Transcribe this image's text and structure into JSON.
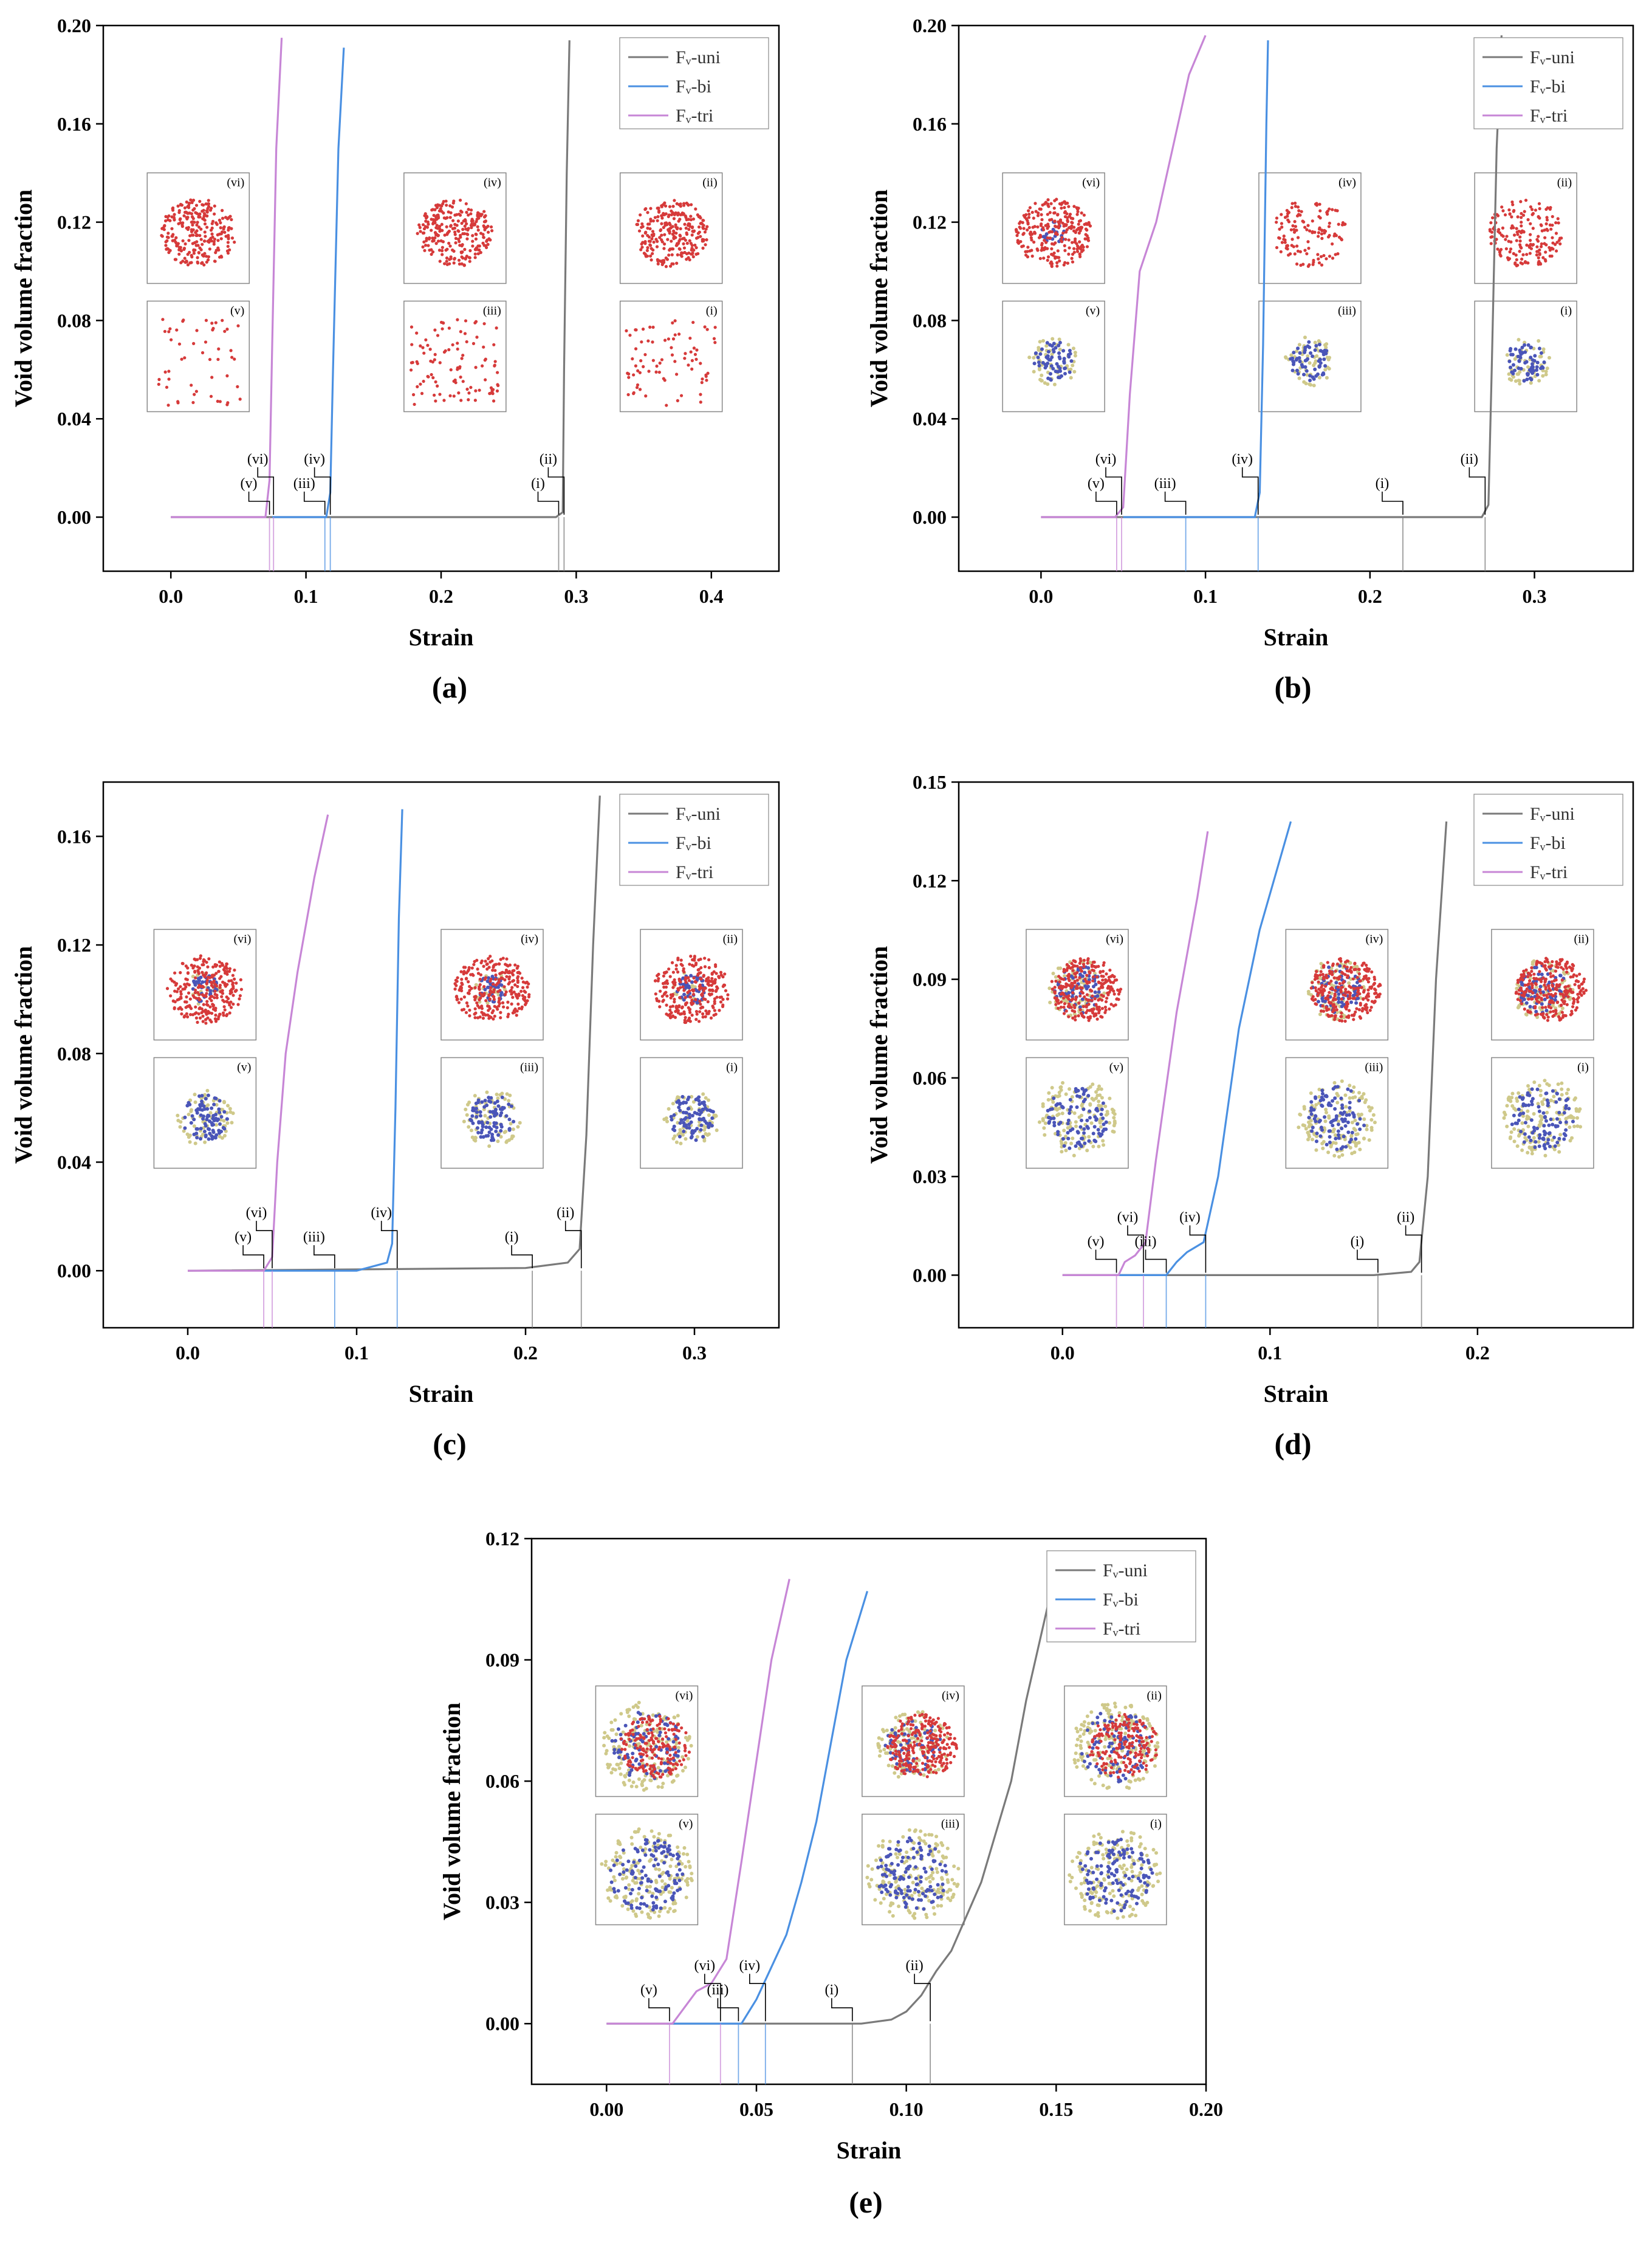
{
  "colors": {
    "uni": "#7a7a7a",
    "bi": "#4a90e2",
    "tri": "#c786d6",
    "void": "#d63a3a",
    "atom_blue": "#4a55b8",
    "atom_tan": "#cfc98a",
    "green": "#2db34a"
  },
  "legend_entries": [
    "Fᵥ-uni",
    "Fᵥ-bi",
    "Fᵥ-tri"
  ],
  "chart_data": [
    {
      "type": "line",
      "panel": "(a)",
      "xlabel": "Strain",
      "ylabel": "Void volume fraction",
      "xlim": [
        -0.05,
        0.45
      ],
      "ylim": [
        -0.022,
        0.2
      ],
      "xticks": [
        0.0,
        0.1,
        0.2,
        0.3,
        0.4
      ],
      "xtick_labels": [
        "0.0",
        "0.1",
        "0.2",
        "0.3",
        "0.4"
      ],
      "yticks": [
        0.0,
        0.04,
        0.08,
        0.12,
        0.16,
        0.2
      ],
      "ytick_labels": [
        "0.00",
        "0.04",
        "0.08",
        "0.12",
        "0.16",
        "0.20"
      ],
      "legend": "top-right",
      "series": [
        {
          "name": "Fᵥ-uni",
          "key": "uni",
          "x": [
            0,
            0.285,
            0.29,
            0.291,
            0.293,
            0.295
          ],
          "y": [
            0,
            0,
            0.002,
            0.06,
            0.14,
            0.194
          ]
        },
        {
          "name": "Fᵥ-bi",
          "key": "bi",
          "x": [
            0.075,
            0.115,
            0.118,
            0.12,
            0.124,
            0.128
          ],
          "y": [
            0,
            0,
            0.01,
            0.06,
            0.15,
            0.191
          ]
        },
        {
          "name": "Fᵥ-tri",
          "key": "tri",
          "x": [
            0,
            0.07,
            0.073,
            0.075,
            0.078,
            0.082
          ],
          "y": [
            0,
            0,
            0.015,
            0.07,
            0.15,
            0.195
          ]
        }
      ],
      "markers": [
        {
          "label": "(i)",
          "key": "uni",
          "x": 0.287
        },
        {
          "label": "(ii)",
          "key": "uni",
          "x": 0.291
        },
        {
          "label": "(iii)",
          "key": "bi",
          "x": 0.114
        },
        {
          "label": "(iv)",
          "key": "bi",
          "x": 0.118
        },
        {
          "label": "(v)",
          "key": "tri",
          "x": 0.073
        },
        {
          "label": "(vi)",
          "key": "tri",
          "x": 0.076
        }
      ],
      "insets": [
        "(vi)",
        "(iv)",
        "(ii)",
        "(v)",
        "(iii)",
        "(i)"
      ]
    },
    {
      "type": "line",
      "panel": "(b)",
      "xlabel": "Strain",
      "ylabel": "Void volume fraction",
      "xlim": [
        -0.05,
        0.36
      ],
      "ylim": [
        -0.022,
        0.2
      ],
      "xticks": [
        0.0,
        0.1,
        0.2,
        0.3
      ],
      "xtick_labels": [
        "0.0",
        "0.1",
        "0.2",
        "0.3"
      ],
      "yticks": [
        0.0,
        0.04,
        0.08,
        0.12,
        0.16,
        0.2
      ],
      "ytick_labels": [
        "0.00",
        "0.04",
        "0.08",
        "0.12",
        "0.16",
        "0.20"
      ],
      "legend": "top-right",
      "series": [
        {
          "name": "Fᵥ-uni",
          "key": "uni",
          "x": [
            0,
            0.268,
            0.272,
            0.274,
            0.277,
            0.28
          ],
          "y": [
            0,
            0,
            0.005,
            0.06,
            0.15,
            0.196
          ]
        },
        {
          "name": "Fᵥ-bi",
          "key": "bi",
          "x": [
            0.05,
            0.13,
            0.133,
            0.135,
            0.137,
            0.138
          ],
          "y": [
            0,
            0,
            0.01,
            0.07,
            0.16,
            0.194
          ]
        },
        {
          "name": "Fᵥ-tri",
          "key": "tri",
          "x": [
            0,
            0.045,
            0.05,
            0.054,
            0.06,
            0.07,
            0.08,
            0.09,
            0.1
          ],
          "y": [
            0,
            0,
            0.004,
            0.05,
            0.1,
            0.12,
            0.15,
            0.18,
            0.196
          ]
        }
      ],
      "markers": [
        {
          "label": "(i)",
          "key": "uni",
          "x": 0.22
        },
        {
          "label": "(ii)",
          "key": "uni",
          "x": 0.27
        },
        {
          "label": "(iii)",
          "key": "bi",
          "x": 0.088
        },
        {
          "label": "(iv)",
          "key": "bi",
          "x": 0.132
        },
        {
          "label": "(v)",
          "key": "tri",
          "x": 0.046
        },
        {
          "label": "(vi)",
          "key": "tri",
          "x": 0.049
        }
      ],
      "insets": [
        "(vi)",
        "(iv)",
        "(ii)",
        "(v)",
        "(iii)",
        "(i)"
      ]
    },
    {
      "type": "line",
      "panel": "(c)",
      "xlabel": "Strain",
      "ylabel": "Void volume fraction",
      "xlim": [
        -0.05,
        0.35
      ],
      "ylim": [
        -0.021,
        0.18
      ],
      "xticks": [
        0.0,
        0.1,
        0.2,
        0.3
      ],
      "xtick_labels": [
        "0.0",
        "0.1",
        "0.2",
        "0.3"
      ],
      "yticks": [
        0.0,
        0.04,
        0.08,
        0.12,
        0.16
      ],
      "ytick_labels": [
        "0.00",
        "0.04",
        "0.08",
        "0.12",
        "0.16"
      ],
      "legend": "top-right",
      "series": [
        {
          "name": "Fᵥ-uni",
          "key": "uni",
          "x": [
            0,
            0.2,
            0.225,
            0.232,
            0.236,
            0.24,
            0.244
          ],
          "y": [
            0,
            0.001,
            0.003,
            0.008,
            0.05,
            0.12,
            0.175
          ]
        },
        {
          "name": "Fᵥ-bi",
          "key": "bi",
          "x": [
            0.045,
            0.1,
            0.118,
            0.121,
            0.123,
            0.125,
            0.127
          ],
          "y": [
            0,
            0,
            0.003,
            0.01,
            0.06,
            0.13,
            0.17
          ]
        },
        {
          "name": "Fᵥ-tri",
          "key": "tri",
          "x": [
            0,
            0.045,
            0.05,
            0.053,
            0.058,
            0.065,
            0.075,
            0.083
          ],
          "y": [
            0,
            0,
            0.005,
            0.04,
            0.08,
            0.11,
            0.145,
            0.168
          ]
        }
      ],
      "markers": [
        {
          "label": "(i)",
          "key": "uni",
          "x": 0.204
        },
        {
          "label": "(ii)",
          "key": "uni",
          "x": 0.233
        },
        {
          "label": "(iii)",
          "key": "bi",
          "x": 0.087
        },
        {
          "label": "(iv)",
          "key": "bi",
          "x": 0.124
        },
        {
          "label": "(v)",
          "key": "tri",
          "x": 0.045
        },
        {
          "label": "(vi)",
          "key": "tri",
          "x": 0.05
        }
      ],
      "insets": [
        "(vi)",
        "(iv)",
        "(ii)",
        "(v)",
        "(iii)",
        "(i)"
      ]
    },
    {
      "type": "line",
      "panel": "(d)",
      "xlabel": "Strain",
      "ylabel": "Void volume fraction",
      "xlim": [
        -0.05,
        0.275
      ],
      "ylim": [
        -0.016,
        0.15
      ],
      "xticks": [
        0.0,
        0.1,
        0.2
      ],
      "xtick_labels": [
        "0.0",
        "0.1",
        "0.2"
      ],
      "yticks": [
        0.0,
        0.03,
        0.06,
        0.09,
        0.12,
        0.15
      ],
      "ytick_labels": [
        "0.00",
        "0.03",
        "0.06",
        "0.09",
        "0.12",
        "0.15"
      ],
      "legend": "top-right",
      "series": [
        {
          "name": "Fᵥ-uni",
          "key": "uni",
          "x": [
            0,
            0.15,
            0.168,
            0.172,
            0.176,
            0.18,
            0.185
          ],
          "y": [
            0,
            0,
            0.001,
            0.004,
            0.03,
            0.09,
            0.138
          ]
        },
        {
          "name": "Fᵥ-bi",
          "key": "bi",
          "x": [
            0.025,
            0.05,
            0.055,
            0.06,
            0.068,
            0.075,
            0.085,
            0.095,
            0.11
          ],
          "y": [
            0,
            0,
            0.004,
            0.007,
            0.01,
            0.03,
            0.075,
            0.105,
            0.138
          ]
        },
        {
          "name": "Fᵥ-tri",
          "key": "tri",
          "x": [
            0,
            0.027,
            0.03,
            0.035,
            0.04,
            0.045,
            0.055,
            0.065,
            0.07
          ],
          "y": [
            0,
            0,
            0.004,
            0.006,
            0.01,
            0.035,
            0.08,
            0.115,
            0.135
          ]
        }
      ],
      "markers": [
        {
          "label": "(i)",
          "key": "uni",
          "x": 0.152
        },
        {
          "label": "(ii)",
          "key": "uni",
          "x": 0.173
        },
        {
          "label": "(iii)",
          "key": "bi",
          "x": 0.05
        },
        {
          "label": "(iv)",
          "key": "bi",
          "x": 0.069
        },
        {
          "label": "(v)",
          "key": "tri",
          "x": 0.026
        },
        {
          "label": "(vi)",
          "key": "tri",
          "x": 0.039
        }
      ],
      "insets": [
        "(vi)",
        "(iv)",
        "(ii)",
        "(v)",
        "(iii)",
        "(i)"
      ]
    },
    {
      "type": "line",
      "panel": "(e)",
      "xlabel": "Strain",
      "ylabel": "Void volume fraction",
      "xlim": [
        -0.025,
        0.2
      ],
      "ylim": [
        -0.015,
        0.12
      ],
      "xticks": [
        0.0,
        0.05,
        0.1,
        0.15,
        0.2
      ],
      "xtick_labels": [
        "0.00",
        "0.05",
        "0.10",
        "0.15",
        "0.20"
      ],
      "yticks": [
        0.0,
        0.03,
        0.06,
        0.09,
        0.12
      ],
      "ytick_labels": [
        "0.00",
        "0.03",
        "0.06",
        "0.09",
        "0.12"
      ],
      "legend": "top-right",
      "series": [
        {
          "name": "Fᵥ-uni",
          "key": "uni",
          "x": [
            0,
            0.085,
            0.095,
            0.1,
            0.105,
            0.11,
            0.115,
            0.125,
            0.135,
            0.14,
            0.148
          ],
          "y": [
            0,
            0,
            0.001,
            0.003,
            0.007,
            0.013,
            0.018,
            0.035,
            0.06,
            0.08,
            0.106
          ]
        },
        {
          "name": "Fᵥ-bi",
          "key": "bi",
          "x": [
            0.02,
            0.045,
            0.05,
            0.055,
            0.06,
            0.065,
            0.07,
            0.075,
            0.08,
            0.087
          ],
          "y": [
            0,
            0,
            0.006,
            0.014,
            0.022,
            0.035,
            0.05,
            0.07,
            0.09,
            0.107
          ]
        },
        {
          "name": "Fᵥ-tri",
          "key": "tri",
          "x": [
            0,
            0.022,
            0.026,
            0.03,
            0.035,
            0.04,
            0.045,
            0.05,
            0.055,
            0.061
          ],
          "y": [
            0,
            0,
            0.004,
            0.008,
            0.01,
            0.016,
            0.04,
            0.065,
            0.09,
            0.11
          ]
        }
      ],
      "markers": [
        {
          "label": "(i)",
          "key": "uni",
          "x": 0.082
        },
        {
          "label": "(ii)",
          "key": "uni",
          "x": 0.108
        },
        {
          "label": "(iii)",
          "key": "bi",
          "x": 0.044
        },
        {
          "label": "(iv)",
          "key": "bi",
          "x": 0.053
        },
        {
          "label": "(v)",
          "key": "tri",
          "x": 0.021
        },
        {
          "label": "(vi)",
          "key": "tri",
          "x": 0.038
        }
      ],
      "insets": [
        "(vi)",
        "(iv)",
        "(ii)",
        "(v)",
        "(iii)",
        "(i)"
      ]
    }
  ]
}
